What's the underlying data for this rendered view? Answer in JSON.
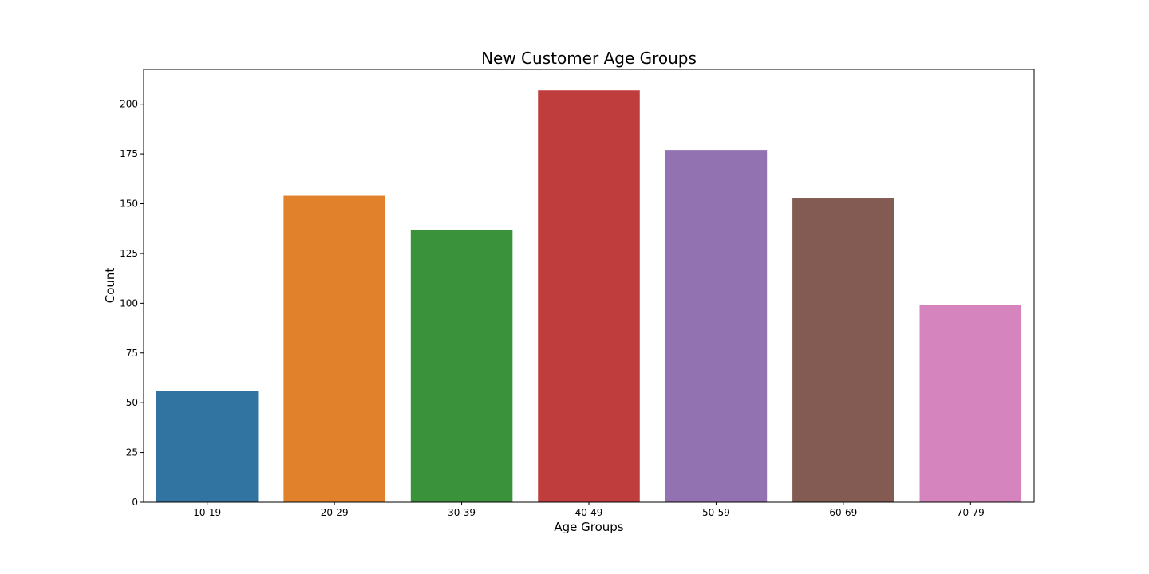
{
  "chart_data": {
    "type": "bar",
    "title": "New Customer Age Groups",
    "xlabel": "Age Groups",
    "ylabel": "Count",
    "categories": [
      "10-19",
      "20-29",
      "30-39",
      "40-49",
      "50-59",
      "60-69",
      "70-79"
    ],
    "values": [
      56,
      154,
      137,
      207,
      177,
      153,
      99
    ],
    "colors": [
      "#3274a1",
      "#e1812c",
      "#3a923a",
      "#c03d3e",
      "#9372b2",
      "#845b53",
      "#d684bd"
    ],
    "ylim": [
      0,
      217.5
    ],
    "yticks": [
      0,
      25,
      50,
      75,
      100,
      125,
      150,
      175,
      200
    ],
    "grid": false,
    "legend": "none"
  }
}
